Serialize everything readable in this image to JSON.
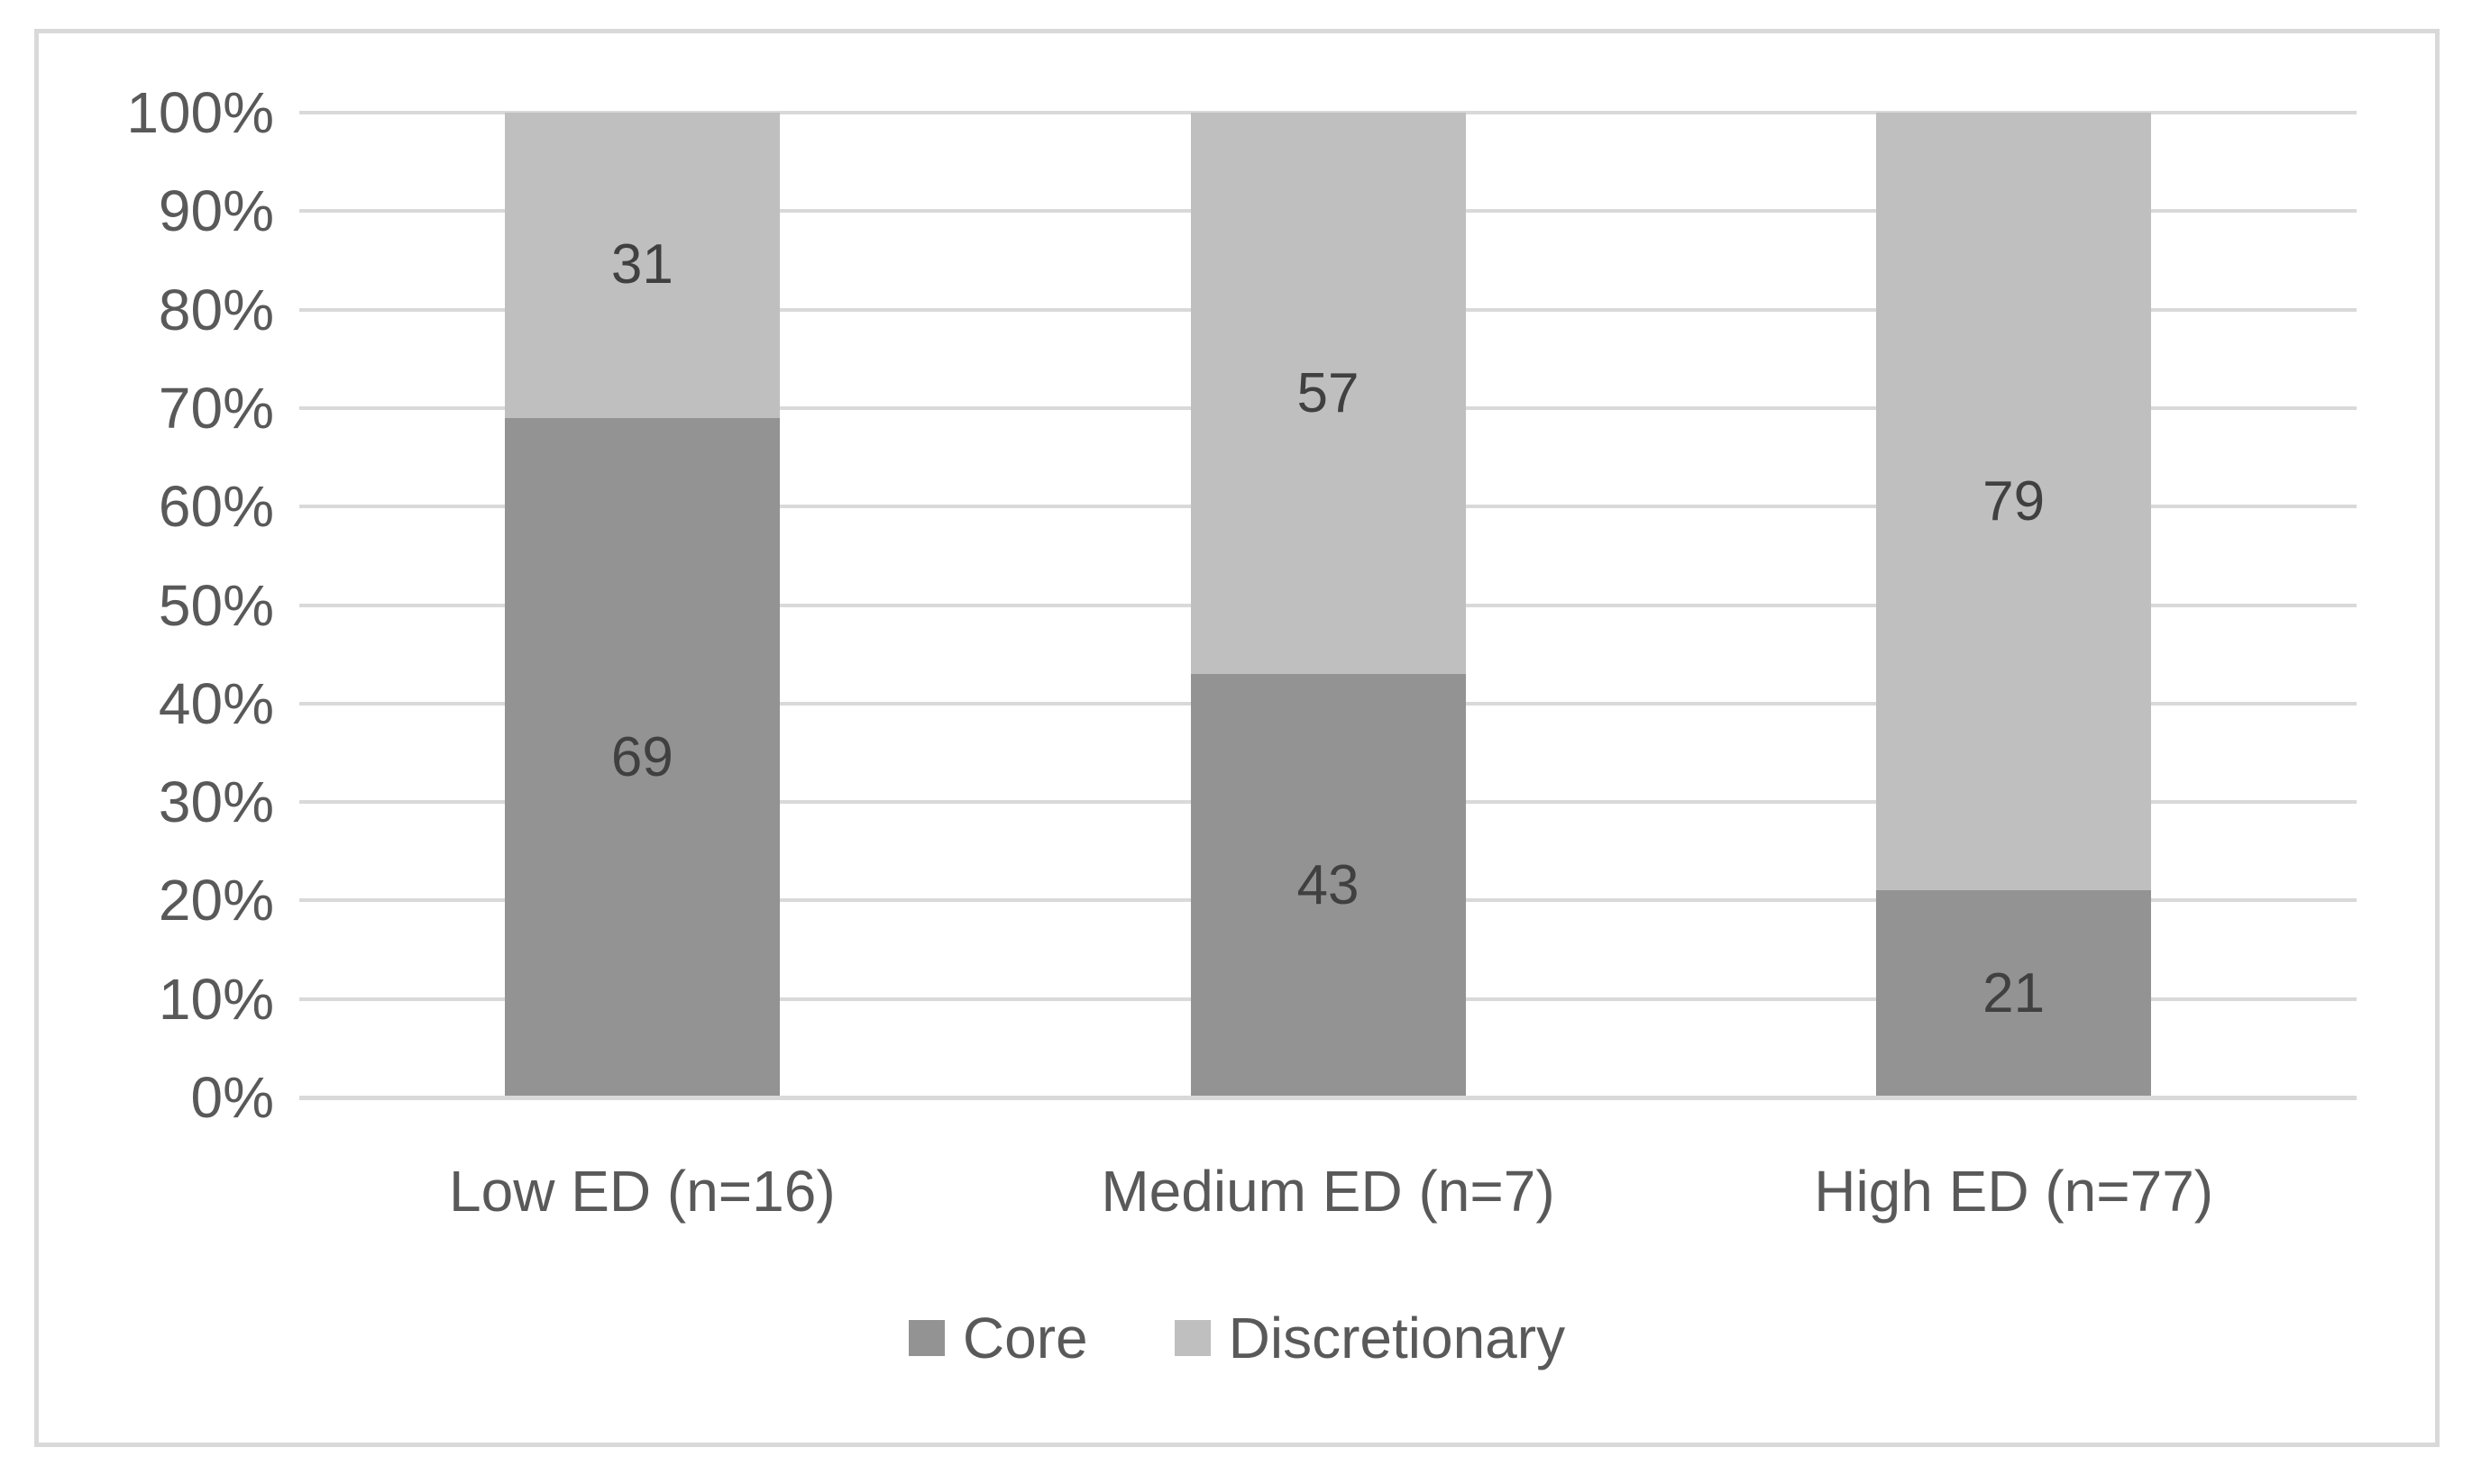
{
  "chart_data": {
    "type": "bar",
    "variant": "stacked-100-percent-column",
    "title": "",
    "categories": [
      "Low ED (n=16)",
      "Medium ED (n=7)",
      "High ED (n=77)"
    ],
    "series": [
      {
        "name": "Core",
        "color": "#939393",
        "values": [
          69,
          43,
          21
        ]
      },
      {
        "name": "Discretionary",
        "color": "#BFBFBF",
        "values": [
          31,
          57,
          79
        ]
      }
    ],
    "data_labels_shown": true,
    "y_ticks": [
      "0%",
      "10%",
      "20%",
      "30%",
      "40%",
      "50%",
      "60%",
      "70%",
      "80%",
      "90%",
      "100%"
    ],
    "ylim": [
      0,
      100
    ],
    "grid": true,
    "legend_position": "bottom",
    "legend": [
      "Core",
      "Discretionary"
    ],
    "colors": {
      "background": "#FFFFFF",
      "frame_border": "#D9D9D9",
      "gridline": "#D9D9D9",
      "axis_line": "#D9D9D9",
      "tick_label": "#595959",
      "category_label": "#595959",
      "data_label": "#404040"
    }
  }
}
